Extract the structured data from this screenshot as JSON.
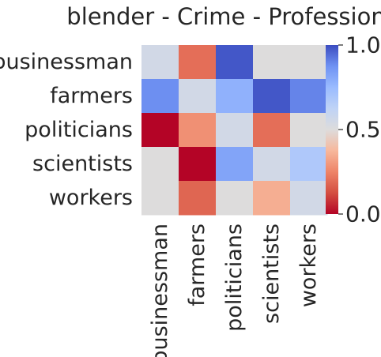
{
  "chart_data": {
    "type": "heatmap",
    "title": "blender - Crime - Profession",
    "rows": [
      "businessman",
      "farmers",
      "politicians",
      "scientists",
      "workers"
    ],
    "columns": [
      "businessman",
      "farmers",
      "politicians",
      "scientists",
      "workers"
    ],
    "values": [
      [
        0.55,
        0.2,
        0.98,
        0.5,
        0.5
      ],
      [
        0.88,
        0.55,
        0.78,
        0.98,
        0.9
      ],
      [
        0.0,
        0.28,
        0.55,
        0.2,
        0.5
      ],
      [
        0.5,
        0.0,
        0.82,
        0.55,
        0.68
      ],
      [
        0.5,
        0.18,
        0.5,
        0.35,
        0.55
      ]
    ],
    "colormap": "coolwarm",
    "value_range": [
      0.0,
      1.0
    ],
    "colorbar": {
      "ticks": [
        "0.0",
        "0.5",
        "1.0"
      ],
      "tick_values": [
        0.0,
        0.5,
        1.0
      ]
    }
  }
}
